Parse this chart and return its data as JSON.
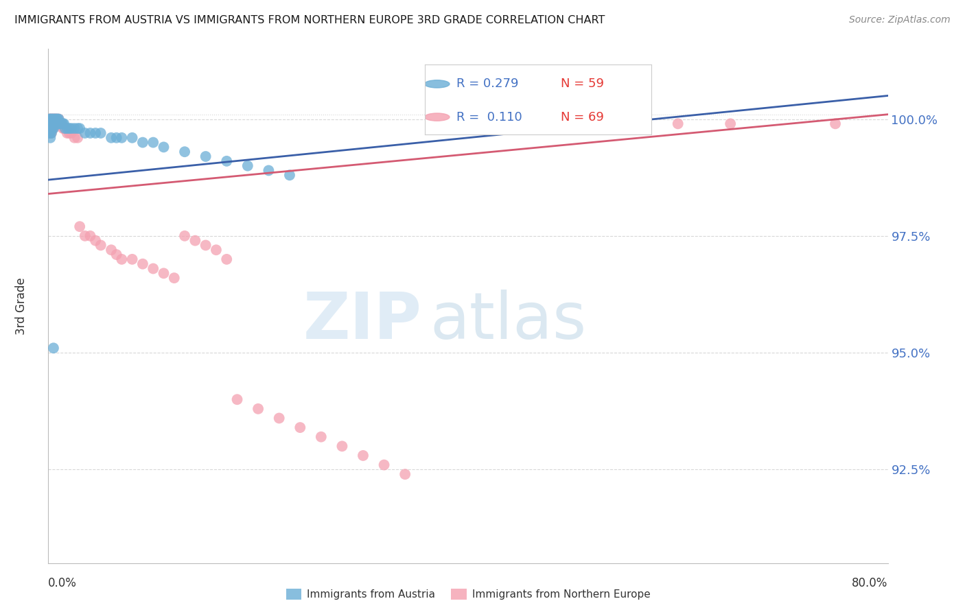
{
  "title": "IMMIGRANTS FROM AUSTRIA VS IMMIGRANTS FROM NORTHERN EUROPE 3RD GRADE CORRELATION CHART",
  "source": "Source: ZipAtlas.com",
  "ylabel": "3rd Grade",
  "ytick_labels": [
    "100.0%",
    "97.5%",
    "95.0%",
    "92.5%"
  ],
  "ytick_values": [
    1.0,
    0.975,
    0.95,
    0.925
  ],
  "xlim": [
    0.0,
    0.8
  ],
  "ylim": [
    0.905,
    1.015
  ],
  "legend_blue_r": "R = 0.279",
  "legend_blue_n": "N = 59",
  "legend_pink_r": "R =  0.110",
  "legend_pink_n": "N = 69",
  "blue_color": "#6baed6",
  "pink_color": "#f4a0b0",
  "blue_line_color": "#3a5fa8",
  "pink_line_color": "#d45a72",
  "blue_scatter_x": [
    0.001,
    0.001,
    0.001,
    0.001,
    0.002,
    0.002,
    0.002,
    0.002,
    0.002,
    0.003,
    0.003,
    0.003,
    0.003,
    0.004,
    0.004,
    0.004,
    0.005,
    0.005,
    0.005,
    0.006,
    0.006,
    0.007,
    0.007,
    0.008,
    0.008,
    0.009,
    0.009,
    0.01,
    0.01,
    0.011,
    0.012,
    0.013,
    0.014,
    0.015,
    0.016,
    0.018,
    0.02,
    0.022,
    0.025,
    0.028,
    0.03,
    0.035,
    0.04,
    0.045,
    0.05,
    0.06,
    0.065,
    0.07,
    0.08,
    0.09,
    0.1,
    0.11,
    0.13,
    0.15,
    0.17,
    0.19,
    0.21,
    0.23,
    0.005
  ],
  "blue_scatter_y": [
    1.0,
    0.999,
    0.998,
    0.997,
    1.0,
    0.999,
    0.998,
    0.997,
    0.996,
    1.0,
    0.999,
    0.998,
    0.997,
    1.0,
    0.999,
    0.998,
    1.0,
    0.999,
    0.998,
    1.0,
    0.999,
    1.0,
    0.999,
    1.0,
    0.999,
    1.0,
    0.999,
    1.0,
    0.999,
    0.999,
    0.999,
    0.999,
    0.999,
    0.999,
    0.998,
    0.998,
    0.998,
    0.998,
    0.998,
    0.998,
    0.998,
    0.997,
    0.997,
    0.997,
    0.997,
    0.996,
    0.996,
    0.996,
    0.996,
    0.995,
    0.995,
    0.994,
    0.993,
    0.992,
    0.991,
    0.99,
    0.989,
    0.988,
    0.951
  ],
  "pink_scatter_x": [
    0.001,
    0.001,
    0.001,
    0.002,
    0.002,
    0.002,
    0.002,
    0.003,
    0.003,
    0.003,
    0.003,
    0.004,
    0.004,
    0.004,
    0.005,
    0.005,
    0.005,
    0.006,
    0.006,
    0.007,
    0.007,
    0.008,
    0.008,
    0.009,
    0.01,
    0.01,
    0.011,
    0.012,
    0.013,
    0.014,
    0.015,
    0.016,
    0.017,
    0.018,
    0.02,
    0.022,
    0.025,
    0.028,
    0.03,
    0.035,
    0.04,
    0.045,
    0.05,
    0.06,
    0.065,
    0.07,
    0.08,
    0.09,
    0.1,
    0.11,
    0.12,
    0.13,
    0.14,
    0.15,
    0.16,
    0.17,
    0.18,
    0.2,
    0.22,
    0.24,
    0.26,
    0.28,
    0.3,
    0.32,
    0.34,
    0.55,
    0.6,
    0.65,
    0.75
  ],
  "pink_scatter_y": [
    1.0,
    0.999,
    0.998,
    1.0,
    0.999,
    0.998,
    0.997,
    1.0,
    0.999,
    0.998,
    0.997,
    1.0,
    0.999,
    0.998,
    1.0,
    0.999,
    0.998,
    1.0,
    0.999,
    1.0,
    0.999,
    1.0,
    0.999,
    0.999,
    1.0,
    0.999,
    0.999,
    0.999,
    0.999,
    0.998,
    0.998,
    0.998,
    0.998,
    0.997,
    0.997,
    0.997,
    0.996,
    0.996,
    0.977,
    0.975,
    0.975,
    0.974,
    0.973,
    0.972,
    0.971,
    0.97,
    0.97,
    0.969,
    0.968,
    0.967,
    0.966,
    0.975,
    0.974,
    0.973,
    0.972,
    0.97,
    0.94,
    0.938,
    0.936,
    0.934,
    0.932,
    0.93,
    0.928,
    0.926,
    0.924,
    0.999,
    0.999,
    0.999,
    0.999
  ],
  "watermark_zip": "ZIP",
  "watermark_atlas": "atlas",
  "background_color": "#ffffff",
  "grid_color": "#d8d8d8",
  "legend_label_blue": "Immigrants from Austria",
  "legend_label_pink": "Immigrants from Northern Europe"
}
